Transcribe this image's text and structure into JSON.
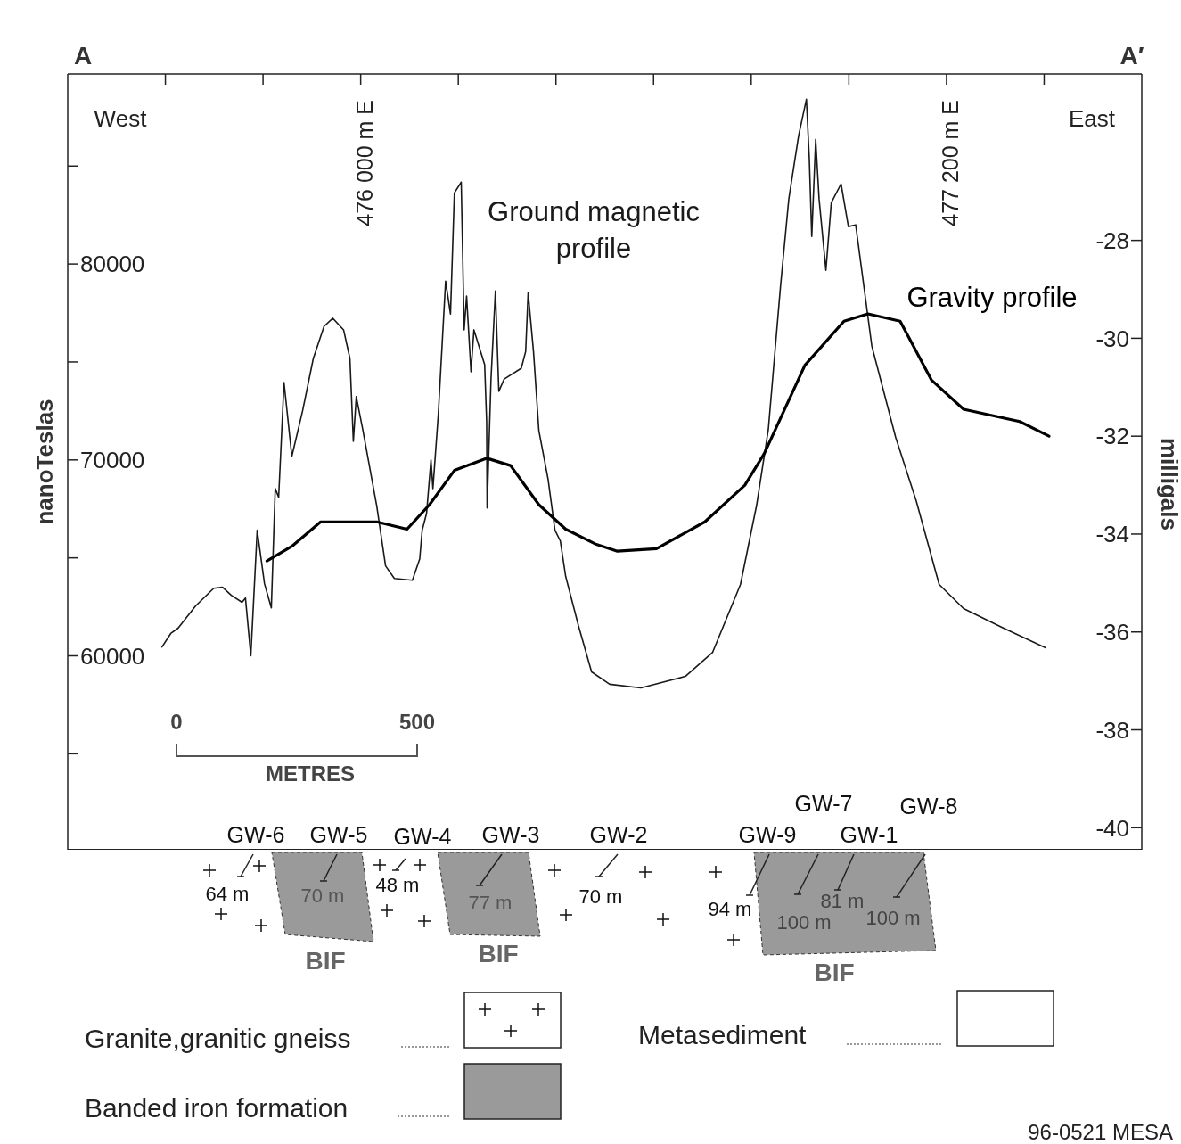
{
  "chart_data": {
    "type": "line",
    "xlabel": null,
    "ylabel": "nanoTeslas",
    "y2label": "milligals",
    "xlim": [
      475400,
      477600
    ],
    "xticks": [
      {
        "value": 475600,
        "label": null
      },
      {
        "value": 475800,
        "label": null
      },
      {
        "value": 476000,
        "label": "476 000 m E"
      },
      {
        "value": 476200,
        "label": null
      },
      {
        "value": 476400,
        "label": null
      },
      {
        "value": 476600,
        "label": null
      },
      {
        "value": 476800,
        "label": null
      },
      {
        "value": 477000,
        "label": null
      },
      {
        "value": 477200,
        "label": "477 200 m E"
      },
      {
        "value": 477400,
        "label": null
      }
    ],
    "ylim": [
      50100,
      89700
    ],
    "yticks": [
      {
        "value": 55000,
        "label": null
      },
      60000,
      {
        "value": 65000,
        "label": null
      },
      70000,
      {
        "value": 75000,
        "label": null
      },
      80000,
      {
        "value": 85000,
        "label": null
      }
    ],
    "y2lim": [
      -40.45,
      -24.6
    ],
    "y2ticks": [
      -40,
      -38,
      -36,
      -34,
      -32,
      -30,
      -28
    ],
    "series": [
      {
        "name": "Ground magnetic profile",
        "color": "#1a1a1a",
        "x": [
          475593,
          475611,
          475626,
          475662,
          475699,
          475717,
          475735,
          475757,
          475764,
          475775,
          475788,
          475803,
          475817,
          475825,
          475832,
          475843,
          475859,
          475881,
          475903,
          475925,
          475943,
          475965,
          475978,
          475985,
          475991,
          476004,
          476033,
          476051,
          476069,
          476106,
          476121,
          476126,
          476135,
          476144,
          476148,
          476159,
          476174,
          476184,
          476192,
          476206,
          476212,
          476217,
          476226,
          476232,
          476254,
          476258,
          476259,
          476267,
          476276,
          476283,
          476294,
          476329,
          476338,
          476343,
          476354,
          476365,
          476384,
          476398,
          476409,
          476420,
          476446,
          476473,
          476510,
          476574,
          476665,
          476721,
          476778,
          476811,
          476835,
          476860,
          476877,
          476897,
          476913,
          476919,
          476924,
          476932,
          476939,
          476953,
          476964,
          476984,
          476999,
          477014,
          477047,
          477096,
          477138,
          477185,
          477235,
          477317,
          477403
        ],
        "values": [
          60450,
          61140,
          61410,
          62550,
          63450,
          63500,
          63090,
          62730,
          62950,
          60000,
          66410,
          63680,
          62450,
          68540,
          68090,
          73950,
          70180,
          72500,
          75180,
          76820,
          77230,
          76640,
          75180,
          70950,
          73230,
          71590,
          67640,
          64590,
          63950,
          63860,
          64950,
          66410,
          67270,
          70000,
          68540,
          72320,
          79130,
          77450,
          83630,
          84180,
          76640,
          78360,
          74500,
          76640,
          74860,
          71950,
          67550,
          74130,
          78630,
          73500,
          74130,
          74680,
          75540,
          78540,
          75540,
          71500,
          69000,
          66410,
          65860,
          64050,
          61550,
          59180,
          58550,
          58360,
          58950,
          60180,
          63640,
          67680,
          71540,
          78860,
          83320,
          86540,
          88410,
          85360,
          81410,
          86360,
          83320,
          79680,
          83130,
          84090,
          81910,
          82000,
          75820,
          71140,
          67910,
          63640,
          62410,
          61410,
          60410
        ]
      },
      {
        "name": "Gravity profile",
        "color": "#000000",
        "axis": "y2",
        "x": [
          475808,
          475859,
          475918,
          476033,
          476095,
          476141,
          476192,
          476258,
          476307,
          476365,
          476420,
          476480,
          476526,
          476606,
          476705,
          476787,
          476827,
          476910,
          476990,
          477039,
          477105,
          477169,
          477235,
          477350,
          477410
        ],
        "values": [
          -34.55,
          -34.25,
          -33.75,
          -33.75,
          -33.9,
          -33.4,
          -32.7,
          -32.45,
          -32.6,
          -33.4,
          -33.9,
          -34.2,
          -34.35,
          -34.3,
          -33.75,
          -33.0,
          -32.35,
          -30.55,
          -29.65,
          -29.5,
          -29.65,
          -30.85,
          -31.45,
          -31.7,
          -32.0
        ]
      }
    ],
    "annotations": [
      "A",
      "A′",
      "West",
      "East",
      "0",
      "500",
      "METRES",
      "GW-6",
      "GW-5",
      "GW-4",
      "GW-3",
      "GW-2",
      "GW-9",
      "GW-7",
      "GW-1",
      "GW-8",
      "64 m",
      "70 m",
      "48 m",
      "77 m",
      "70 m",
      "94 m",
      "100 m",
      "81 m",
      "100 m",
      "BIF",
      "BIF",
      "BIF",
      "Granite,granitic gneiss",
      "Metasediment",
      "Banded iron formation",
      "96-0521 MESA"
    ]
  }
}
